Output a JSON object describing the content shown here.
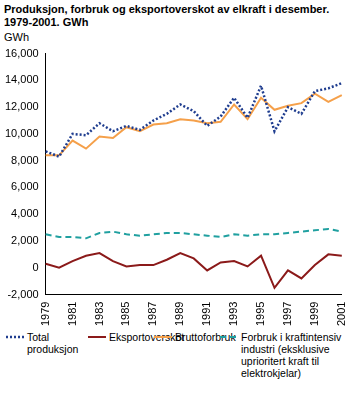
{
  "chart_data": {
    "type": "line",
    "title": "Produksjon, forbruk og eksportoverskot av elkraft i desember. 1979-2001. GWh",
    "y_label": "GWh",
    "categories": [
      "1979",
      null,
      "1981",
      null,
      "1983",
      null,
      "1985",
      null,
      "1987",
      null,
      "1989",
      null,
      "1991",
      null,
      "1993",
      null,
      "1995",
      null,
      "1997",
      null,
      "1999",
      null,
      "2001"
    ],
    "series": [
      {
        "name": "Total produksjon",
        "color": "#1f3d8f",
        "line_style": "dotted",
        "values": [
          8700,
          8300,
          10000,
          9900,
          10800,
          10200,
          10600,
          10300,
          11000,
          11500,
          12200,
          11700,
          10600,
          11300,
          12700,
          11200,
          13600,
          10200,
          12000,
          11500,
          13200,
          13400,
          13800
        ]
      },
      {
        "name": "Eksportoverskot",
        "color": "#8b1a1a",
        "line_style": "solid",
        "values": [
          300,
          0,
          500,
          900,
          1100,
          500,
          100,
          200,
          200,
          600,
          1100,
          700,
          -200,
          400,
          500,
          100,
          900,
          -1500,
          -200,
          -800,
          200,
          1000,
          900
        ]
      },
      {
        "name": "Bruttoforbruk",
        "color": "#f5a04a",
        "line_style": "solid",
        "values": [
          8400,
          8400,
          9500,
          8900,
          9800,
          9700,
          10500,
          10200,
          10700,
          10800,
          11100,
          11000,
          10800,
          10900,
          12200,
          11100,
          12700,
          11800,
          12100,
          12300,
          13000,
          12400,
          12900
        ]
      },
      {
        "name": "Forbruk i kraftintensiv industri (eksklusive uprioritert kraft til elektrokjelar)",
        "color": "#20a0a0",
        "line_style": "dashed",
        "values": [
          2500,
          2300,
          2300,
          2200,
          2600,
          2700,
          2500,
          2400,
          2500,
          2600,
          2600,
          2500,
          2400,
          2300,
          2500,
          2400,
          2500,
          2500,
          2600,
          2700,
          2800,
          2900,
          2700
        ]
      }
    ],
    "ylim": [
      -2000,
      16000
    ],
    "yticks": [
      -2000,
      0,
      2000,
      4000,
      6000,
      8000,
      10000,
      12000,
      14000,
      16000
    ],
    "grid": false,
    "legend": "bottom"
  }
}
